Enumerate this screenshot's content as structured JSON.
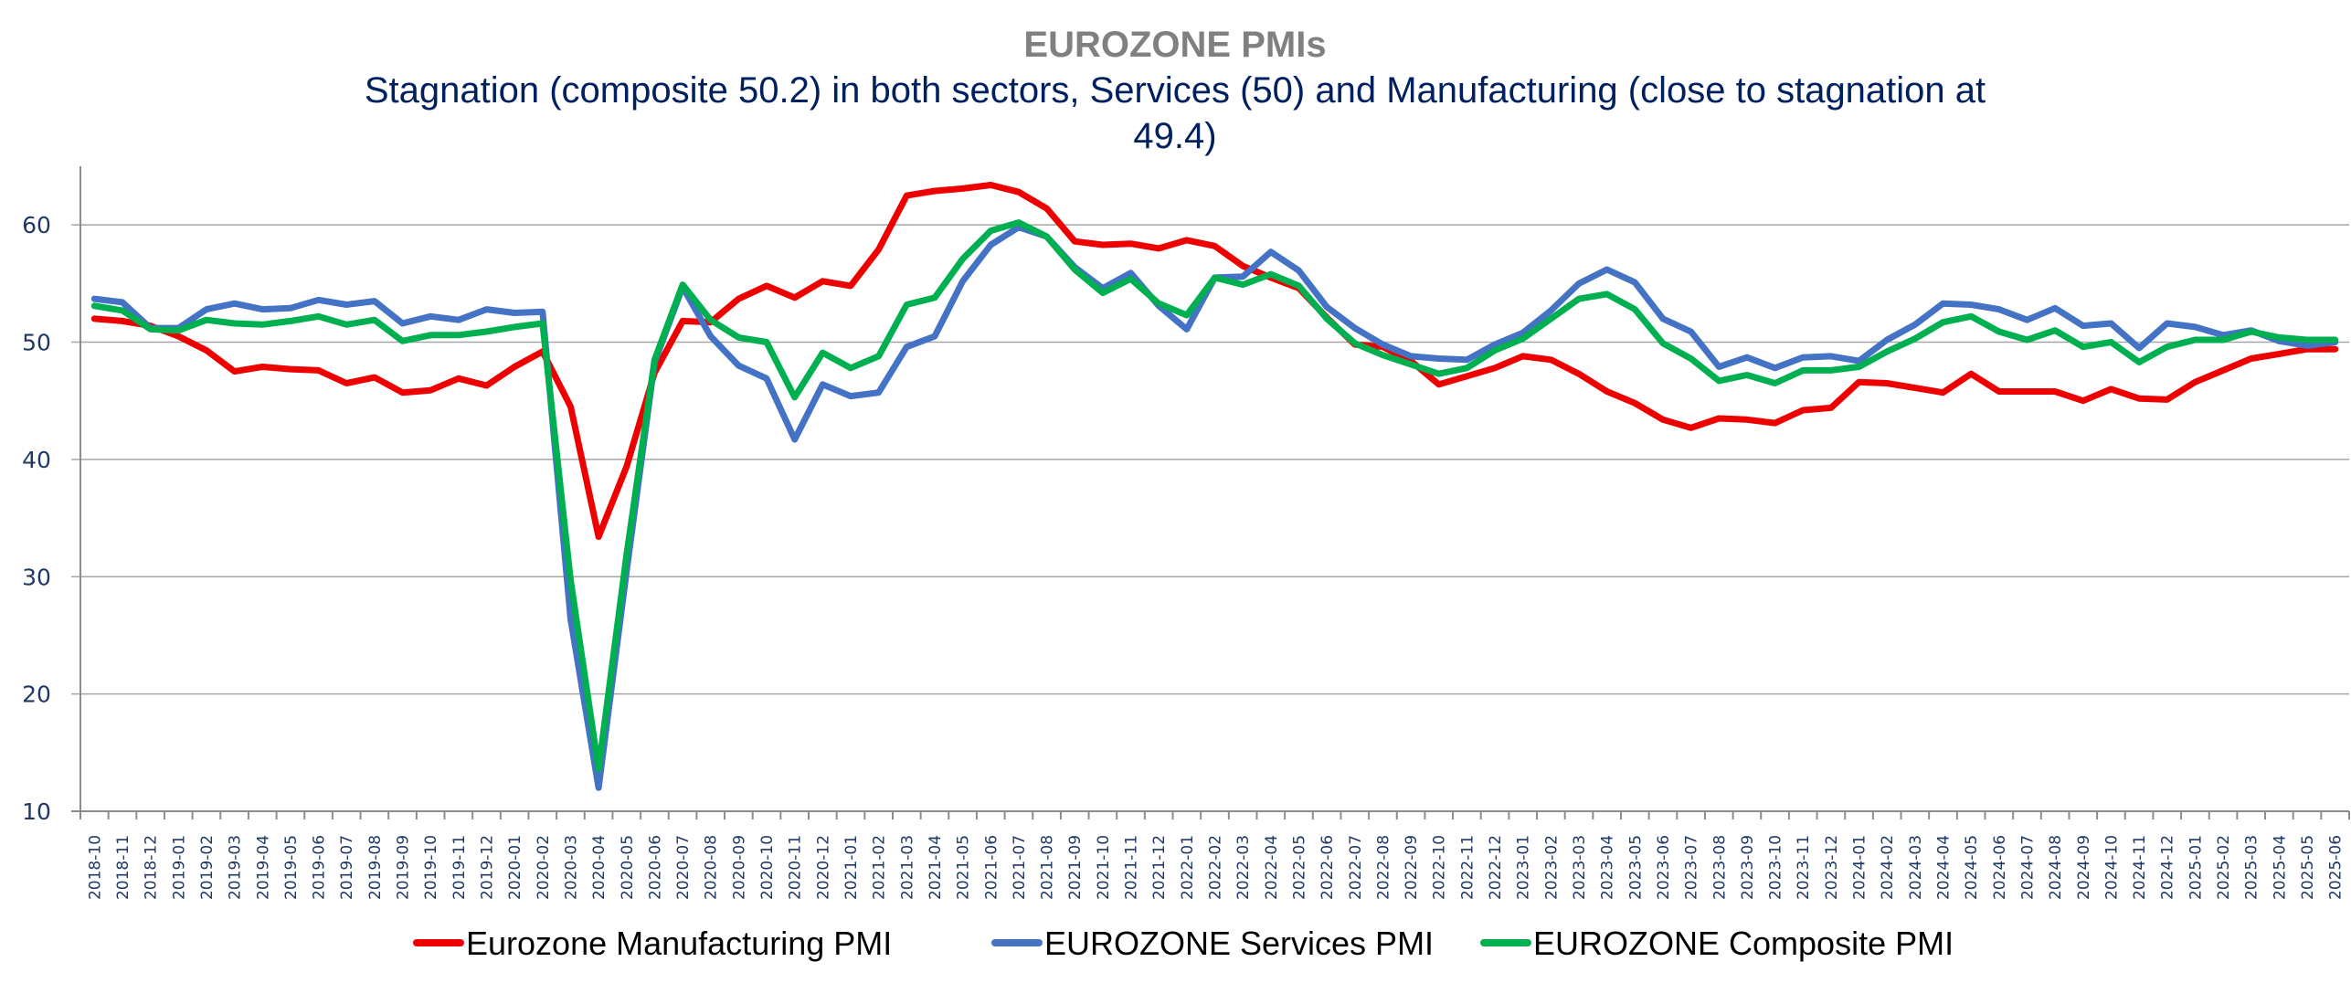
{
  "chart_data": {
    "type": "line",
    "title": "EUROZONE PMIs",
    "subtitle_lines": [
      "Stagnation (composite 50.2) in both sectors, Services (50) and Manufacturing (close to stagnation  at",
      "49.4)"
    ],
    "xlabel": "",
    "ylabel": "",
    "ylim": [
      10,
      65
    ],
    "yticks": [
      10,
      20,
      30,
      40,
      50,
      60
    ],
    "grid": true,
    "legend_position": "bottom",
    "categories": [
      "2018-10",
      "2018-11",
      "2018-12",
      "2019-01",
      "2019-02",
      "2019-03",
      "2019-04",
      "2019-05",
      "2019-06",
      "2019-07",
      "2019-08",
      "2019-09",
      "2019-10",
      "2019-11",
      "2019-12",
      "2020-01",
      "2020-02",
      "2020-03",
      "2020-04",
      "2020-05",
      "2020-06",
      "2020-07",
      "2020-08",
      "2020-09",
      "2020-10",
      "2020-11",
      "2020-12",
      "2021-01",
      "2021-02",
      "2021-03",
      "2021-04",
      "2021-05",
      "2021-06",
      "2021-07",
      "2021-08",
      "2021-09",
      "2021-10",
      "2021-11",
      "2021-12",
      "2022-01",
      "2022-02",
      "2022-03",
      "2022-04",
      "2022-05",
      "2022-06",
      "2022-07",
      "2022-08",
      "2022-09",
      "2022-10",
      "2022-11",
      "2022-12",
      "2023-01",
      "2023-02",
      "2023-03",
      "2023-04",
      "2023-05",
      "2023-06",
      "2023-07",
      "2023-08",
      "2023-09",
      "2023-10",
      "2023-11",
      "2023-12",
      "2024-01",
      "2024-02",
      "2024-03",
      "2024-04",
      "2024-05",
      "2024-06",
      "2024-07",
      "2024-08",
      "2024-09",
      "2024-10",
      "2024-11",
      "2024-12",
      "2025-01",
      "2025-02",
      "2025-03",
      "2025-04",
      "2025-05",
      "2025-06"
    ],
    "series": [
      {
        "name": "Eurozone Manufacturing PMI",
        "color": "#ee0000",
        "values": [
          52.0,
          51.8,
          51.4,
          50.5,
          49.3,
          47.5,
          47.9,
          47.7,
          47.6,
          46.5,
          47.0,
          45.7,
          45.9,
          46.9,
          46.3,
          47.9,
          49.2,
          44.5,
          33.4,
          39.4,
          47.4,
          51.8,
          51.7,
          53.7,
          54.8,
          53.8,
          55.2,
          54.8,
          57.9,
          62.5,
          62.9,
          63.1,
          63.4,
          62.8,
          61.4,
          58.6,
          58.3,
          58.4,
          58.0,
          58.7,
          58.2,
          56.5,
          55.5,
          54.6,
          52.1,
          49.8,
          49.6,
          48.4,
          46.4,
          47.1,
          47.8,
          48.8,
          48.5,
          47.3,
          45.8,
          44.8,
          43.4,
          42.7,
          43.5,
          43.4,
          43.1,
          44.2,
          44.4,
          46.6,
          46.5,
          46.1,
          45.7,
          47.3,
          45.8,
          45.8,
          45.8,
          45.0,
          46.0,
          45.2,
          45.1,
          46.6,
          47.6,
          48.6,
          49.0,
          49.4,
          49.4
        ]
      },
      {
        "name": "EUROZONE Services PMI",
        "color": "#4472c4",
        "values": [
          53.7,
          53.4,
          51.2,
          51.2,
          52.8,
          53.3,
          52.8,
          52.9,
          53.6,
          53.2,
          53.5,
          51.6,
          52.2,
          51.9,
          52.8,
          52.5,
          52.6,
          26.4,
          12.0,
          30.5,
          48.3,
          54.7,
          50.5,
          48.0,
          46.9,
          41.7,
          46.4,
          45.4,
          45.7,
          49.6,
          50.5,
          55.2,
          58.3,
          59.8,
          59.0,
          56.4,
          54.6,
          55.9,
          53.1,
          51.1,
          55.5,
          55.6,
          57.7,
          56.1,
          53.0,
          51.2,
          49.8,
          48.8,
          48.6,
          48.5,
          49.8,
          50.8,
          52.7,
          55.0,
          56.2,
          55.1,
          52.0,
          50.9,
          47.9,
          48.7,
          47.8,
          48.7,
          48.8,
          48.4,
          50.2,
          51.5,
          53.3,
          53.2,
          52.8,
          51.9,
          52.9,
          51.4,
          51.6,
          49.5,
          51.6,
          51.3,
          50.6,
          51.0,
          50.1,
          49.7,
          50.0
        ]
      },
      {
        "name": "EUROZONE Composite PMI",
        "color": "#00b050",
        "values": [
          53.1,
          52.7,
          51.1,
          51.0,
          51.9,
          51.6,
          51.5,
          51.8,
          52.2,
          51.5,
          51.9,
          50.1,
          50.6,
          50.6,
          50.9,
          51.3,
          51.6,
          29.7,
          13.6,
          31.9,
          48.5,
          54.9,
          51.9,
          50.4,
          50.0,
          45.3,
          49.1,
          47.8,
          48.8,
          53.2,
          53.8,
          57.1,
          59.5,
          60.2,
          59.0,
          56.2,
          54.2,
          55.4,
          53.3,
          52.3,
          55.5,
          54.9,
          55.8,
          54.8,
          52.0,
          49.9,
          48.9,
          48.1,
          47.3,
          47.8,
          49.3,
          50.3,
          52.0,
          53.7,
          54.1,
          52.8,
          49.9,
          48.6,
          46.7,
          47.2,
          46.5,
          47.6,
          47.6,
          47.9,
          49.2,
          50.3,
          51.7,
          52.2,
          50.9,
          50.2,
          51.0,
          49.6,
          50.0,
          48.3,
          49.6,
          50.2,
          50.2,
          50.9,
          50.4,
          50.2,
          50.2
        ]
      }
    ]
  }
}
